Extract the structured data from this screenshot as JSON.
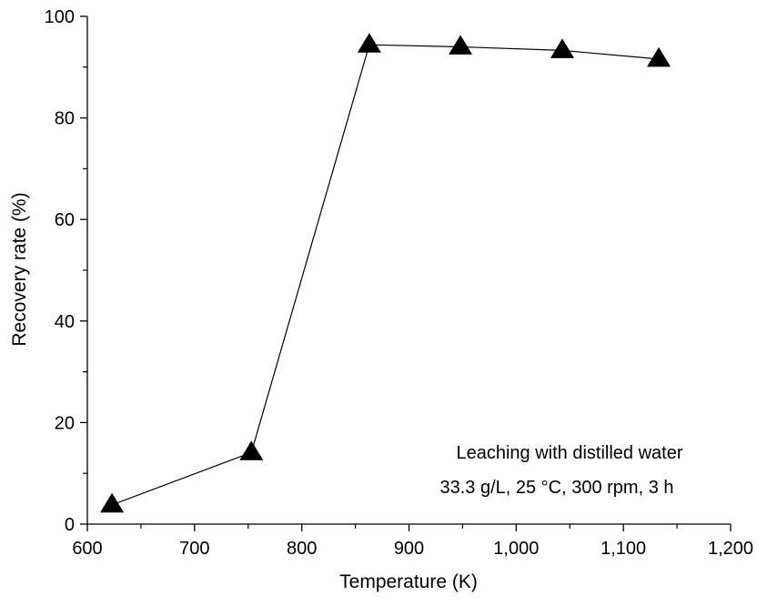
{
  "chart_data": {
    "type": "line",
    "title": "",
    "xlabel": "Temperature (K)",
    "ylabel": "Recovery rate (%)",
    "xlim": [
      600,
      1200
    ],
    "ylim": [
      0,
      100
    ],
    "x_ticks": [
      600,
      700,
      800,
      900,
      1000,
      1100,
      1200
    ],
    "x_tick_labels": [
      "600",
      "700",
      "800",
      "900",
      "1,000",
      "1,100",
      "1,200"
    ],
    "y_ticks": [
      0,
      20,
      40,
      60,
      80,
      100
    ],
    "y_tick_labels": [
      "0",
      "20",
      "40",
      "60",
      "80",
      "100"
    ],
    "grid": false,
    "marker": "triangle-up",
    "series": [
      {
        "x": [
          623,
          753,
          863,
          948,
          1043,
          1133
        ],
        "y": [
          3.8,
          14.1,
          94.4,
          94.0,
          93.3,
          91.6
        ]
      }
    ],
    "annotation": {
      "line1": "Leaching with distilled water",
      "line2": "33.3 g/L, 25 °C, 300 rpm, 3 h"
    },
    "colors": {
      "line": "#000000",
      "marker": "#000000",
      "axis": "#000000"
    }
  }
}
